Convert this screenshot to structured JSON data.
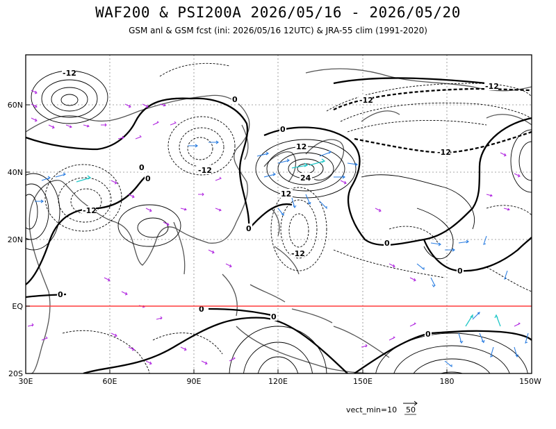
{
  "title": "WAF200 & PSI200A    2026/05/16 - 2026/05/20",
  "subtitle": "GSM anl & GSM fcst (ini: 2026/05/16 12UTC) & JRA-55 clim (1991-2020)",
  "axes": {
    "x_ticks": [
      "30E",
      "60E",
      "90E",
      "120E",
      "150E",
      "180",
      "150W"
    ],
    "y_ticks": [
      "60N",
      "40N",
      "20N",
      "EQ",
      "20S"
    ]
  },
  "contour_labels": [
    "-12",
    "0",
    "0",
    "-12",
    "0",
    "-12",
    "-12",
    "-12",
    "12",
    "24",
    "12",
    "-12",
    "0",
    "0",
    "0",
    "-12",
    "0",
    "0",
    "0",
    "0",
    "0"
  ],
  "legend": {
    "label": "vect_min=10",
    "value": "50"
  },
  "colors": {
    "equator": "#ff3b3b",
    "vector_weak": "#b026e0",
    "vector_medium": "#2a7de1",
    "vector_strong": "#21c7c7",
    "coast": "#555555",
    "grid": "#888888"
  }
}
